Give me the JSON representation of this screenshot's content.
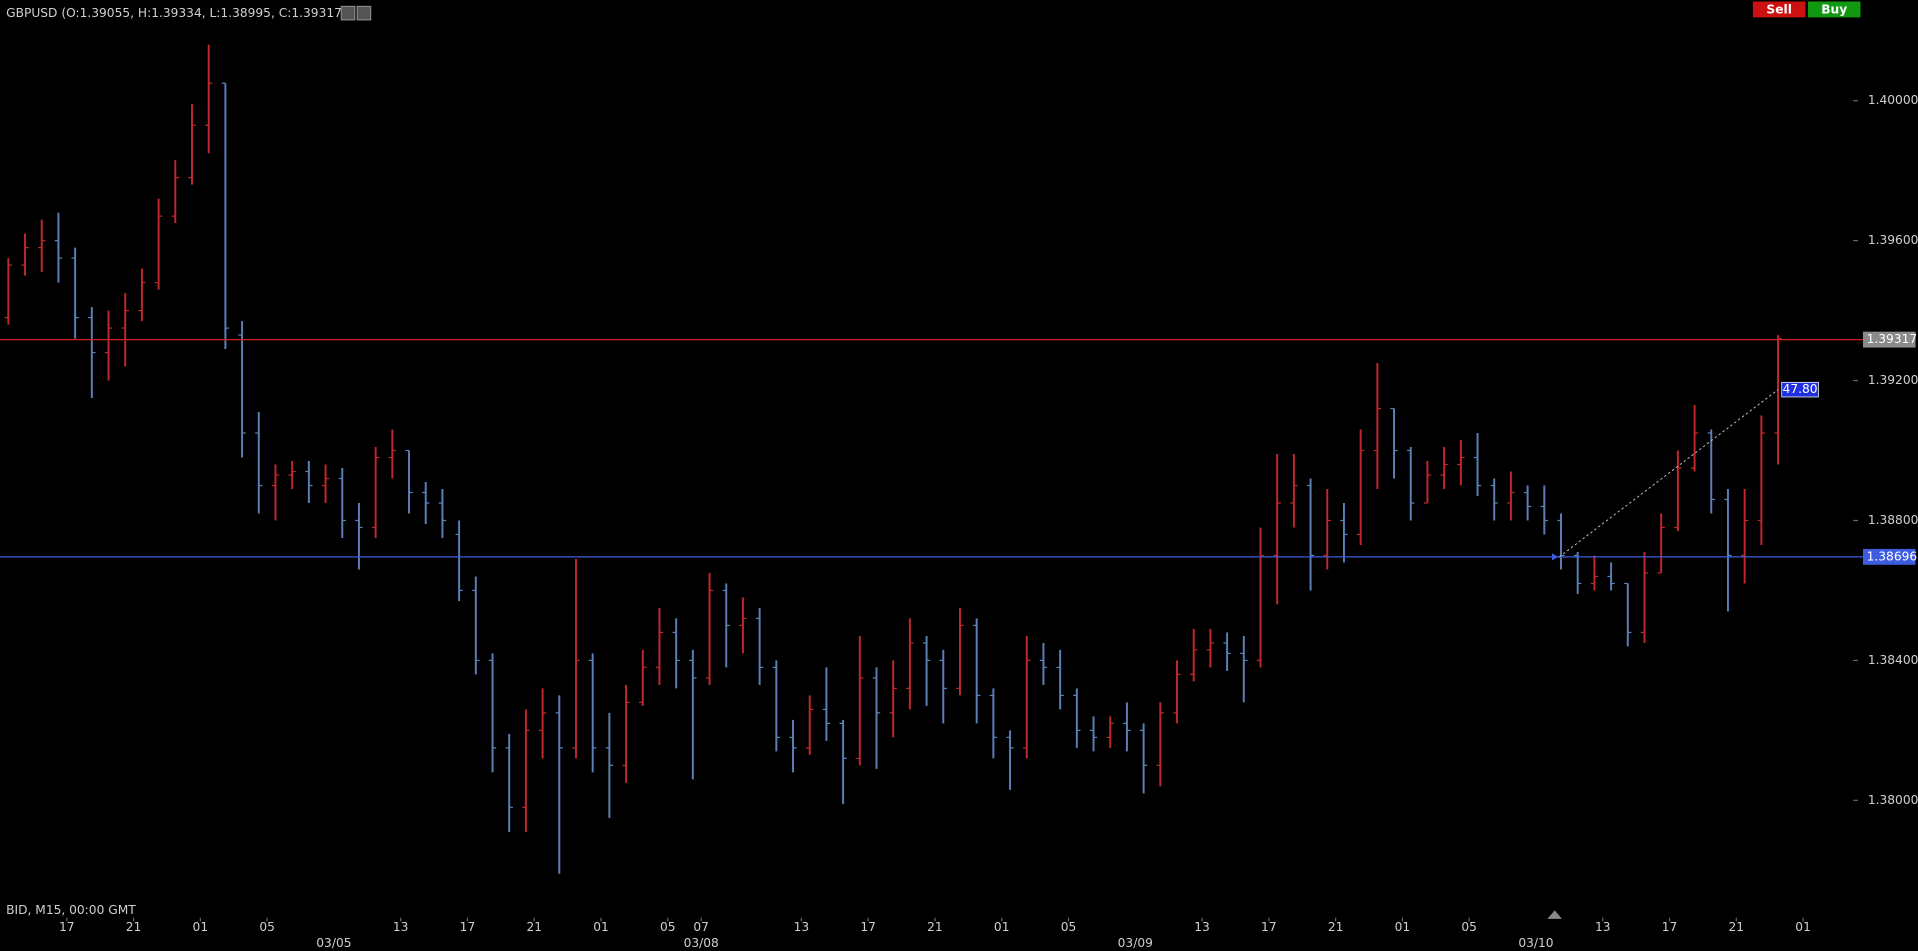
{
  "chart_data": {
    "type": "ohlc",
    "title": "GBPUSD (O:1.39055, H:1.39334, L:1.38995, C:1.39317)",
    "footer": "BID, M15, 00:00 GMT",
    "buttons": [
      "Sell",
      "Buy"
    ],
    "up_color": "#c0282d",
    "down_color": "#5b80b8",
    "xlim": [
      0,
      111
    ],
    "ylim": [
      1.37717,
      1.40287
    ],
    "yticks": [
      {
        "value": 1.38,
        "label": "1.38000"
      },
      {
        "value": 1.384,
        "label": "1.38400"
      },
      {
        "value": 1.388,
        "label": "1.38800"
      },
      {
        "value": 1.392,
        "label": "1.39200"
      },
      {
        "value": 1.396,
        "label": "1.39600"
      },
      {
        "value": 1.4,
        "label": "1.40000"
      }
    ],
    "xticks": [
      {
        "value": 4,
        "label": "17"
      },
      {
        "value": 8,
        "label": "21"
      },
      {
        "value": 12,
        "label": "01"
      },
      {
        "value": 16,
        "label": "05"
      },
      {
        "value": 24,
        "label": "13"
      },
      {
        "value": 28,
        "label": "17"
      },
      {
        "value": 32,
        "label": "21"
      },
      {
        "value": 36,
        "label": "01"
      },
      {
        "value": 40,
        "label": "05"
      },
      {
        "value": 42,
        "label": "07"
      },
      {
        "value": 48,
        "label": "13"
      },
      {
        "value": 52,
        "label": "17"
      },
      {
        "value": 56,
        "label": "21"
      },
      {
        "value": 60,
        "label": "01"
      },
      {
        "value": 64,
        "label": "05"
      },
      {
        "value": 72,
        "label": "13"
      },
      {
        "value": 76,
        "label": "17"
      },
      {
        "value": 80,
        "label": "21"
      },
      {
        "value": 84,
        "label": "01"
      },
      {
        "value": 88,
        "label": "05"
      },
      {
        "value": 96,
        "label": "13"
      },
      {
        "value": 100,
        "label": "17"
      },
      {
        "value": 104,
        "label": "21"
      },
      {
        "value": 108,
        "label": "01"
      }
    ],
    "date_ticks": [
      {
        "value": 20,
        "label": "03/05"
      },
      {
        "value": 42,
        "label": "03/08"
      },
      {
        "value": 68,
        "label": "03/09"
      },
      {
        "value": 92,
        "label": "03/10"
      }
    ],
    "levels": [
      {
        "value": 1.39317,
        "color": "#d42020",
        "label_color": "#8a8a8a"
      },
      {
        "value": 1.38696,
        "color": "#3d5ce0",
        "label_color": "#3d5ce0"
      }
    ],
    "trend_line": {
      "x": [
        93.4,
        106.5
      ],
      "y": [
        1.38696,
        1.39174
      ],
      "label": "47.80"
    },
    "x": [
      0.5,
      1.5,
      2.5,
      3.5,
      4.5,
      5.5,
      6.5,
      7.5,
      8.5,
      9.5,
      10.5,
      11.5,
      12.5,
      13.5,
      14.5,
      15.5,
      16.5,
      17.5,
      18.5,
      19.5,
      20.5,
      21.5,
      22.5,
      23.5,
      24.5,
      25.5,
      26.5,
      27.5,
      28.5,
      29.5,
      30.5,
      31.5,
      32.5,
      33.5,
      34.5,
      35.5,
      36.5,
      37.5,
      38.5,
      39.5,
      40.5,
      41.5,
      42.5,
      43.5,
      44.5,
      45.5,
      46.5,
      47.5,
      48.5,
      49.5,
      50.5,
      51.5,
      52.5,
      53.5,
      54.5,
      55.5,
      56.5,
      57.5,
      58.5,
      59.5,
      60.5,
      61.5,
      62.5,
      63.5,
      64.5,
      65.5,
      66.5,
      67.5,
      68.5,
      69.5,
      70.5,
      71.5,
      72.5,
      73.5,
      74.5,
      75.5,
      76.5,
      77.5,
      78.5,
      79.5,
      80.5,
      81.5,
      82.5,
      83.5,
      84.5,
      85.5,
      86.5,
      87.5,
      88.5,
      89.5,
      90.5,
      91.5,
      92.5,
      93.5,
      94.5,
      95.5,
      96.5,
      97.5,
      98.5,
      99.5,
      100.5,
      101.5,
      102.5,
      103.5,
      104.5,
      105.5,
      106.5
    ],
    "ohlc": [
      [
        1.3938,
        1.3955,
        1.3936,
        1.3953
      ],
      [
        1.3953,
        1.3962,
        1.395,
        1.3958
      ],
      [
        1.3958,
        1.3966,
        1.3951,
        1.396
      ],
      [
        1.396,
        1.3968,
        1.3948,
        1.3955
      ],
      [
        1.3955,
        1.3958,
        1.3932,
        1.3938
      ],
      [
        1.3938,
        1.3941,
        1.3915,
        1.3928
      ],
      [
        1.3928,
        1.394,
        1.392,
        1.3935
      ],
      [
        1.3935,
        1.3945,
        1.3924,
        1.394
      ],
      [
        1.394,
        1.3952,
        1.3937,
        1.3948
      ],
      [
        1.3948,
        1.3972,
        1.3946,
        1.3967
      ],
      [
        1.3967,
        1.3983,
        1.3965,
        1.3978
      ],
      [
        1.3978,
        1.3999,
        1.3976,
        1.3993
      ],
      [
        1.3993,
        1.4016,
        1.3985,
        1.4005
      ],
      [
        1.4005,
        1.4005,
        1.3929,
        1.3935
      ],
      [
        1.3933,
        1.3937,
        1.3898,
        1.3905
      ],
      [
        1.3905,
        1.3911,
        1.3882,
        1.389
      ],
      [
        1.389,
        1.3896,
        1.388,
        1.3893
      ],
      [
        1.3893,
        1.3897,
        1.3889,
        1.3894
      ],
      [
        1.3894,
        1.3897,
        1.3885,
        1.389
      ],
      [
        1.389,
        1.3896,
        1.3885,
        1.3892
      ],
      [
        1.3892,
        1.3895,
        1.3875,
        1.388
      ],
      [
        1.388,
        1.3885,
        1.3866,
        1.3878
      ],
      [
        1.3878,
        1.3901,
        1.3875,
        1.3898
      ],
      [
        1.3898,
        1.3906,
        1.3892,
        1.39
      ],
      [
        1.39,
        1.39,
        1.3882,
        1.3888
      ],
      [
        1.3888,
        1.3891,
        1.3879,
        1.3885
      ],
      [
        1.3885,
        1.3889,
        1.3875,
        1.388
      ],
      [
        1.3876,
        1.388,
        1.3857,
        1.386
      ],
      [
        1.386,
        1.3864,
        1.3836,
        1.384
      ],
      [
        1.384,
        1.3842,
        1.3808,
        1.3815
      ],
      [
        1.3815,
        1.3819,
        1.3791,
        1.3798
      ],
      [
        1.3798,
        1.3826,
        1.3791,
        1.382
      ],
      [
        1.382,
        1.3832,
        1.3812,
        1.3825
      ],
      [
        1.3825,
        1.383,
        1.3779,
        1.3815
      ],
      [
        1.3815,
        1.3869,
        1.3812,
        1.384
      ],
      [
        1.384,
        1.3842,
        1.3808,
        1.3815
      ],
      [
        1.3815,
        1.3825,
        1.3795,
        1.381
      ],
      [
        1.381,
        1.3833,
        1.3805,
        1.3828
      ],
      [
        1.3828,
        1.3843,
        1.3827,
        1.3838
      ],
      [
        1.3838,
        1.3855,
        1.3833,
        1.3848
      ],
      [
        1.3848,
        1.3852,
        1.3832,
        1.384
      ],
      [
        1.384,
        1.3843,
        1.3806,
        1.3835
      ],
      [
        1.3835,
        1.3865,
        1.3833,
        1.386
      ],
      [
        1.386,
        1.3862,
        1.3838,
        1.385
      ],
      [
        1.385,
        1.3858,
        1.3842,
        1.3852
      ],
      [
        1.3852,
        1.3855,
        1.3833,
        1.3838
      ],
      [
        1.3838,
        1.384,
        1.3814,
        1.3818
      ],
      [
        1.3818,
        1.3823,
        1.3808,
        1.3815
      ],
      [
        1.3815,
        1.383,
        1.3813,
        1.3826
      ],
      [
        1.3826,
        1.3838,
        1.3817,
        1.3822
      ],
      [
        1.3822,
        1.3823,
        1.3799,
        1.3812
      ],
      [
        1.3812,
        1.3847,
        1.381,
        1.3835
      ],
      [
        1.3835,
        1.3838,
        1.3809,
        1.3825
      ],
      [
        1.3825,
        1.384,
        1.3818,
        1.3832
      ],
      [
        1.3832,
        1.3852,
        1.3826,
        1.3845
      ],
      [
        1.3845,
        1.3847,
        1.3827,
        1.384
      ],
      [
        1.384,
        1.3843,
        1.3822,
        1.3832
      ],
      [
        1.3832,
        1.3855,
        1.383,
        1.385
      ],
      [
        1.385,
        1.3852,
        1.3822,
        1.383
      ],
      [
        1.383,
        1.3832,
        1.3812,
        1.3818
      ],
      [
        1.3818,
        1.382,
        1.3803,
        1.3815
      ],
      [
        1.3815,
        1.3847,
        1.3812,
        1.384
      ],
      [
        1.384,
        1.3845,
        1.3833,
        1.3838
      ],
      [
        1.3838,
        1.3843,
        1.3826,
        1.383
      ],
      [
        1.383,
        1.3832,
        1.3815,
        1.382
      ],
      [
        1.382,
        1.3824,
        1.3814,
        1.3818
      ],
      [
        1.3818,
        1.3824,
        1.3815,
        1.3822
      ],
      [
        1.3822,
        1.3828,
        1.3814,
        1.382
      ],
      [
        1.382,
        1.3822,
        1.3802,
        1.381
      ],
      [
        1.381,
        1.3828,
        1.3804,
        1.3825
      ],
      [
        1.3825,
        1.384,
        1.3822,
        1.3836
      ],
      [
        1.3836,
        1.3849,
        1.3834,
        1.3843
      ],
      [
        1.3843,
        1.3849,
        1.3838,
        1.3845
      ],
      [
        1.3845,
        1.3848,
        1.3837,
        1.3842
      ],
      [
        1.3842,
        1.3847,
        1.3828,
        1.384
      ],
      [
        1.384,
        1.3878,
        1.3838,
        1.387
      ],
      [
        1.387,
        1.3899,
        1.3856,
        1.3885
      ],
      [
        1.3885,
        1.3899,
        1.3878,
        1.389
      ],
      [
        1.389,
        1.3892,
        1.386,
        1.387
      ],
      [
        1.387,
        1.3889,
        1.3866,
        1.388
      ],
      [
        1.388,
        1.3885,
        1.3868,
        1.3876
      ],
      [
        1.3876,
        1.3906,
        1.3873,
        1.39
      ],
      [
        1.39,
        1.3925,
        1.3889,
        1.3912
      ],
      [
        1.3912,
        1.3912,
        1.3892,
        1.39
      ],
      [
        1.39,
        1.3901,
        1.388,
        1.3885
      ],
      [
        1.3885,
        1.3897,
        1.3885,
        1.3893
      ],
      [
        1.3893,
        1.3901,
        1.3889,
        1.3896
      ],
      [
        1.3896,
        1.3903,
        1.389,
        1.3898
      ],
      [
        1.3898,
        1.3905,
        1.3887,
        1.389
      ],
      [
        1.389,
        1.3892,
        1.388,
        1.3885
      ],
      [
        1.3885,
        1.3894,
        1.388,
        1.3888
      ],
      [
        1.3888,
        1.389,
        1.388,
        1.3884
      ],
      [
        1.3884,
        1.389,
        1.3876,
        1.388
      ],
      [
        1.388,
        1.3882,
        1.3866,
        1.387
      ],
      [
        1.387,
        1.3871,
        1.3859,
        1.3862
      ],
      [
        1.3862,
        1.387,
        1.386,
        1.3864
      ],
      [
        1.3864,
        1.3868,
        1.386,
        1.3862
      ],
      [
        1.3862,
        1.3862,
        1.3844,
        1.3848
      ],
      [
        1.3848,
        1.3871,
        1.3845,
        1.3865
      ],
      [
        1.3865,
        1.3882,
        1.3865,
        1.3878
      ],
      [
        1.3878,
        1.39,
        1.3877,
        1.3895
      ],
      [
        1.3895,
        1.3913,
        1.3894,
        1.3905
      ],
      [
        1.3905,
        1.3906,
        1.3882,
        1.3886
      ],
      [
        1.3886,
        1.3889,
        1.3854,
        1.387
      ],
      [
        1.387,
        1.3889,
        1.3862,
        1.388
      ],
      [
        1.388,
        1.391,
        1.3873,
        1.3905
      ],
      [
        1.3905,
        1.3933,
        1.3896,
        1.3932
      ]
    ]
  }
}
